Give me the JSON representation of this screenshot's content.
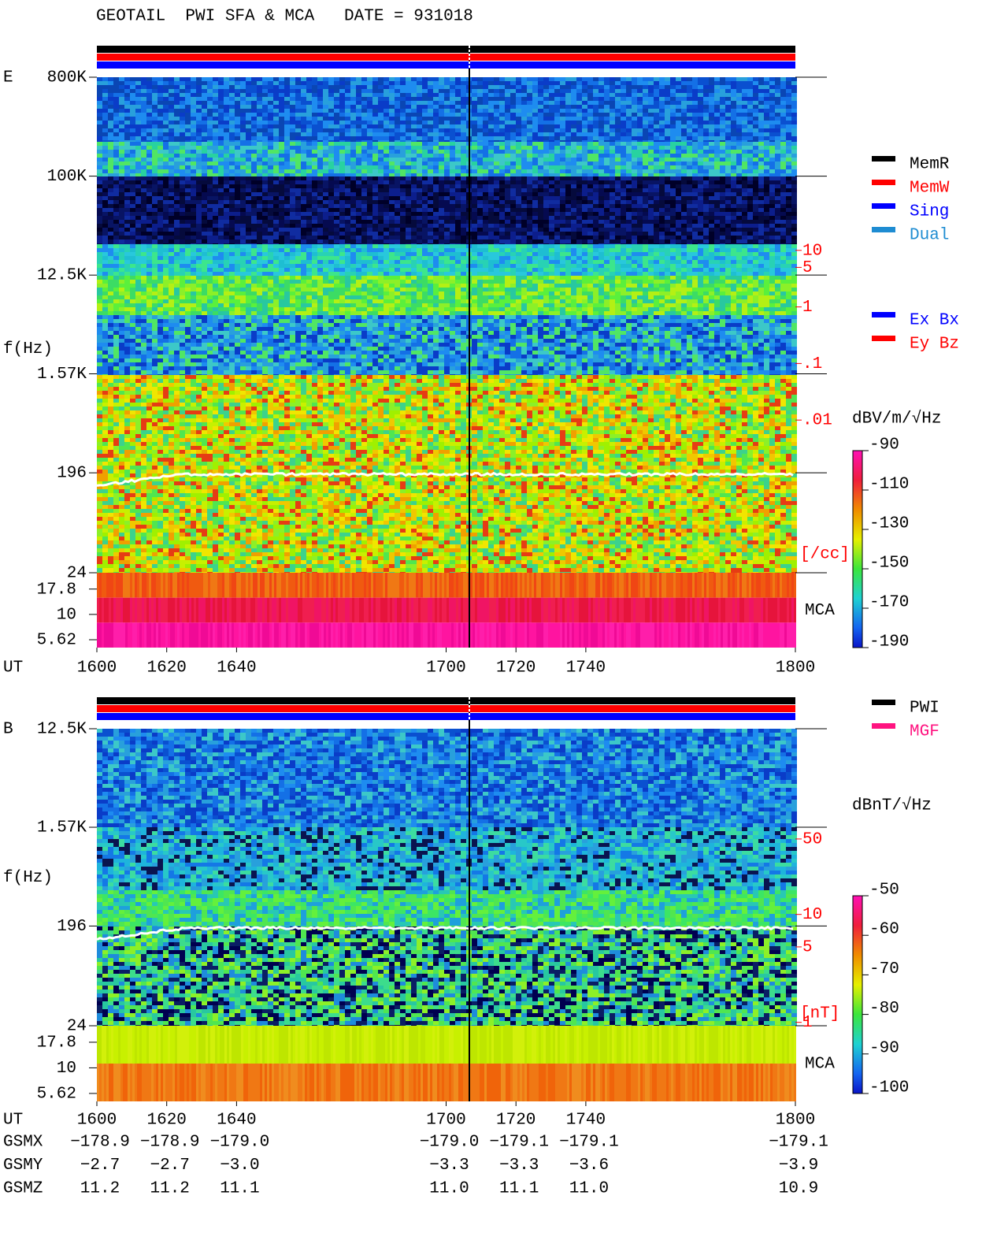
{
  "title": "GEOTAIL  PWI SFA & MCA   DATE = 931018",
  "chart_data": [
    {
      "type": "spectrogram",
      "panel": "E",
      "xlabel": "UT",
      "ylabel": "f(Hz)",
      "xlim": [
        1600,
        1800
      ],
      "xticks": [
        1600,
        1620,
        1640,
        1700,
        1720,
        1740,
        1800
      ],
      "yscale": "log",
      "ylim": [
        24,
        800000
      ],
      "yticks": [
        {
          "value": 800000,
          "label": "800K"
        },
        {
          "value": 100000,
          "label": "100K"
        },
        {
          "value": 12500,
          "label": "12.5K"
        },
        {
          "value": 1570,
          "label": "1.57K"
        },
        196,
        24
      ],
      "mca": {
        "label": "MCA",
        "ylim": [
          4.7,
          25.8
        ],
        "yticks": [
          17.8,
          10,
          5.62
        ]
      },
      "y2lim": [
        2e-05,
        11500
      ],
      "y2label": "[/cc]",
      "y2ticks": [
        10,
        5,
        1,
        {
          "value": 0.1,
          "label": ".1"
        },
        {
          "value": 0.01,
          "label": ".01"
        }
      ],
      "colorbar": {
        "label": "dBV/m/√Hz",
        "lim": [
          -190,
          -90
        ],
        "ticks": [
          -90,
          -110,
          -130,
          -150,
          -170,
          -190
        ]
      },
      "legend": [
        {
          "name": "MemR",
          "color": "#000000"
        },
        {
          "name": "MemW",
          "color": "#ff0000"
        },
        {
          "name": "Sing",
          "color": "#0000ff"
        },
        {
          "name": "Dual",
          "color": "#1e8cd2"
        }
      ],
      "legend2": [
        {
          "name": "Ex Bx",
          "color": "#0000ff"
        },
        {
          "name": "Ey Bz",
          "color": "#ff0000"
        }
      ]
    },
    {
      "type": "spectrogram",
      "panel": "B",
      "xlabel": "UT",
      "ylabel": "f(Hz)",
      "xlim": [
        1600,
        1800
      ],
      "xticks": [
        1600,
        1620,
        1640,
        1700,
        1720,
        1740,
        1800
      ],
      "yscale": "log",
      "ylim": [
        24,
        12500
      ],
      "yticks": [
        {
          "value": 12500,
          "label": "12.5K"
        },
        {
          "value": 1570,
          "label": "1.57K"
        },
        196,
        24
      ],
      "mca": {
        "label": "MCA",
        "ylim": [
          4.7,
          25.8
        ],
        "yticks": [
          17.8,
          10,
          5.62
        ]
      },
      "y2lim": [
        0.93,
        525
      ],
      "y2label": "[nT]",
      "y2ticks": [
        50,
        10,
        5,
        1
      ],
      "colorbar": {
        "label": "dBnT/√Hz",
        "lim": [
          -100,
          -50
        ],
        "ticks": [
          -50,
          -60,
          -70,
          -80,
          -90,
          -100
        ]
      },
      "legend": [
        {
          "name": "PWI",
          "color": "#000000"
        },
        {
          "name": "MGF",
          "color": "#ff1480"
        }
      ],
      "orbit": [
        {
          "name": "GSMX",
          "values": [
            "−178.9",
            "−178.9",
            "−179.0",
            "−179.0",
            "−179.1",
            "−179.1",
            "−179.1"
          ]
        },
        {
          "name": "GSMY",
          "values": [
            "−2.7",
            "−2.7",
            "−3.0",
            "−3.3",
            "−3.3",
            "−3.6",
            "−3.9"
          ]
        },
        {
          "name": "GSMZ",
          "values": [
            "11.2",
            "11.2",
            "11.1",
            "11.0",
            "11.1",
            "11.0",
            "10.9"
          ]
        }
      ]
    }
  ]
}
